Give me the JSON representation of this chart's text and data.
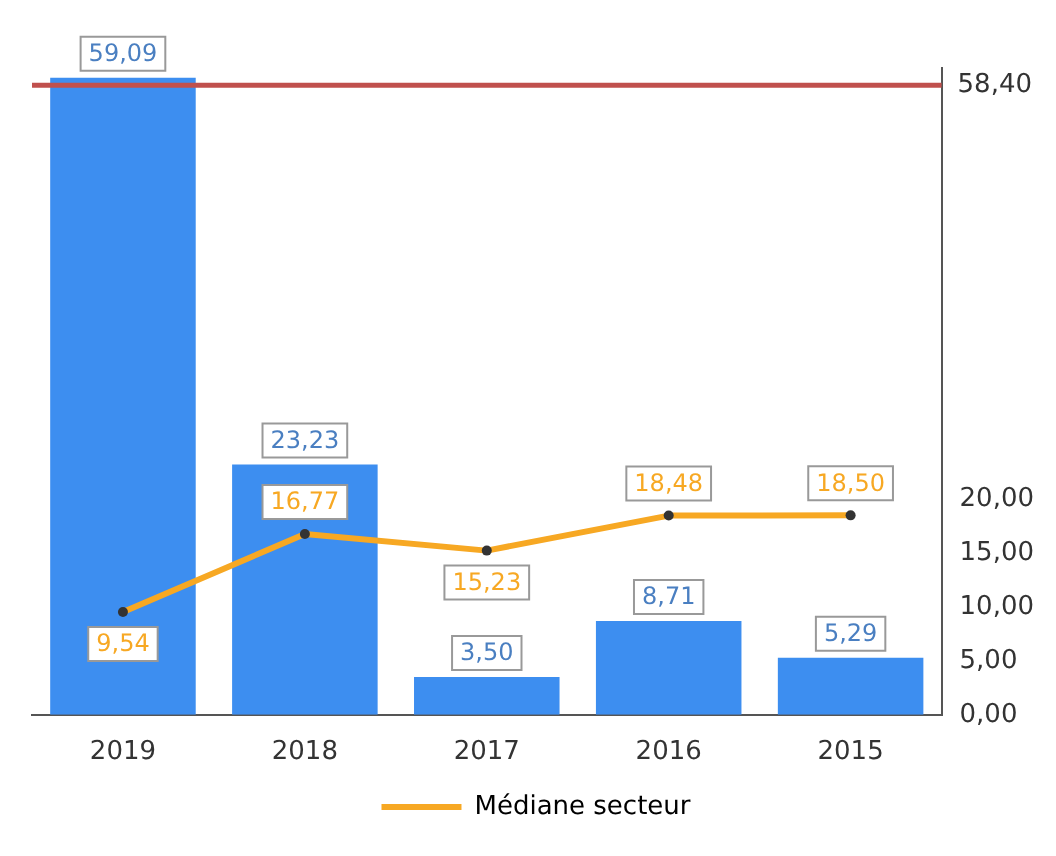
{
  "chart_data": {
    "type": "bar",
    "categories": [
      "2019",
      "2018",
      "2017",
      "2016",
      "2015"
    ],
    "series": [
      {
        "color": "#3d8ef0",
        "values": [
          59.09,
          23.23,
          3.5,
          8.71,
          5.29
        ],
        "value_labels": [
          "59,09",
          "23,23",
          "3,50",
          "8,71",
          "5,29"
        ]
      },
      {
        "type": "line",
        "name": "Médiane secteur",
        "color": "#f7a823",
        "values": [
          9.54,
          16.77,
          15.23,
          18.48,
          18.5
        ],
        "value_labels": [
          "9,54",
          "16,77",
          "15,23",
          "18,48",
          "18,50"
        ]
      }
    ],
    "ylim": [
      0,
      60
    ],
    "yticks": [
      {
        "value": 0,
        "label": "0,00"
      },
      {
        "value": 5,
        "label": "5,00"
      },
      {
        "value": 10,
        "label": "10,00"
      },
      {
        "value": 15,
        "label": "15,00"
      },
      {
        "value": 20,
        "label": "20,00"
      }
    ],
    "ref_lines": [
      {
        "axis": "y",
        "value": 58.4,
        "label": "58,40",
        "color": "#c0504d"
      }
    ],
    "legend": "bottom",
    "marker": "circle",
    "grid": false
  }
}
